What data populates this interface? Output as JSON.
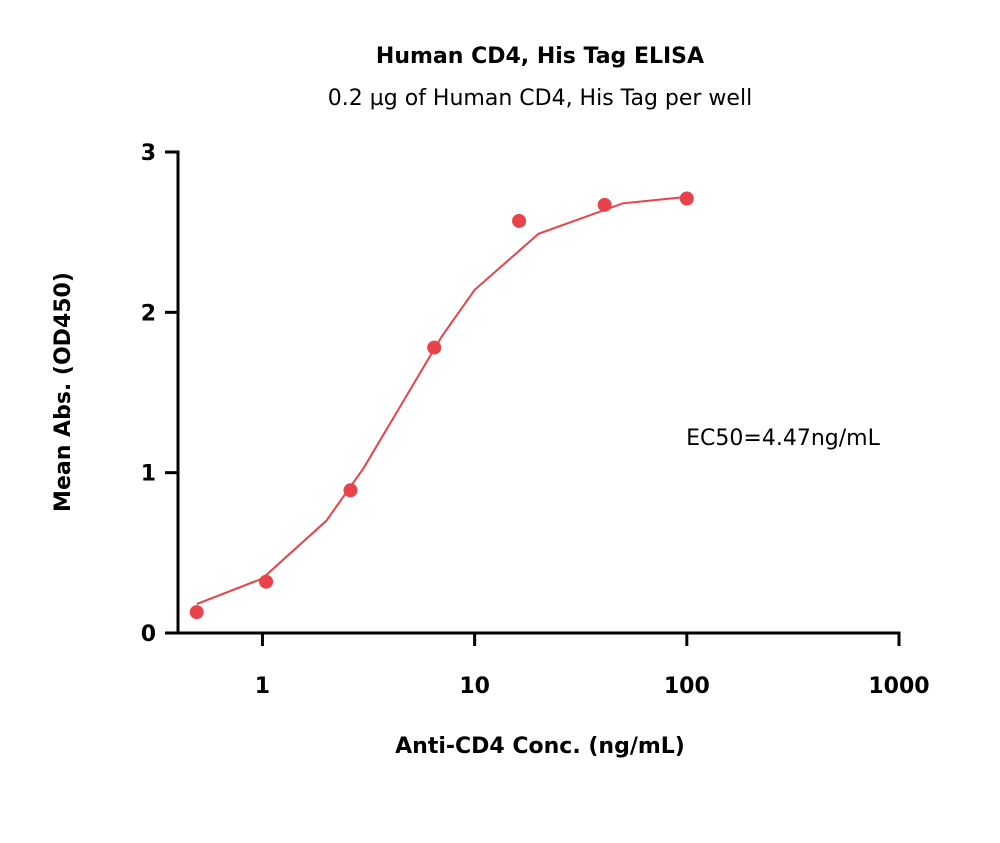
{
  "chart_data": {
    "type": "scatter",
    "title": "Human CD4, His Tag ELISA",
    "subtitle": "0.2 µg of Human CD4, His Tag per well",
    "x_label": "Anti-CD4 Conc. (ng/mL)",
    "y_label": "Mean Abs. (OD450)",
    "annotation": "EC50=4.47ng/mL",
    "x_scale": "log",
    "xlim": [
      0.4,
      1000
    ],
    "xticks": [
      1,
      10,
      100,
      1000
    ],
    "ylim": [
      0,
      3
    ],
    "yticks": [
      0,
      1,
      2,
      3
    ],
    "color": "#e8424a",
    "x": [
      0.49,
      1.04,
      2.6,
      6.45,
      16.2,
      41,
      100
    ],
    "values": [
      0.13,
      0.32,
      0.89,
      1.78,
      2.57,
      2.67,
      2.71
    ],
    "fit": {
      "x": [
        0.49,
        1,
        2,
        3,
        4.47,
        7,
        10,
        20,
        50,
        100
      ],
      "values": [
        0.18,
        0.34,
        0.7,
        1.03,
        1.415,
        1.85,
        2.14,
        2.49,
        2.68,
        2.72
      ]
    }
  }
}
